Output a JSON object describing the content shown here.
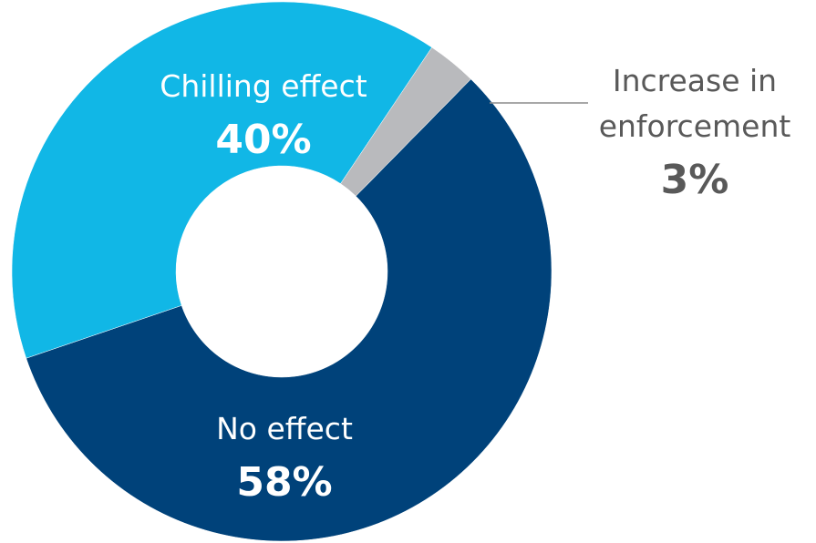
{
  "chart_data": {
    "type": "pie",
    "donut": true,
    "title": "",
    "legend": "none",
    "slices": [
      {
        "label_lines": [
          "No effect"
        ],
        "value_label": "58%",
        "value": 58,
        "color": "#00427a",
        "text_color": "#ffffff"
      },
      {
        "label_lines": [
          "Chilling effect"
        ],
        "value_label": "40%",
        "value": 40,
        "color": "#11b7e6",
        "text_color": "#ffffff"
      },
      {
        "label_lines": [
          "Increase in",
          "enforcement"
        ],
        "value_label": "3%",
        "value": 3,
        "color": "#b9babd",
        "text_color": "#595959"
      }
    ]
  }
}
